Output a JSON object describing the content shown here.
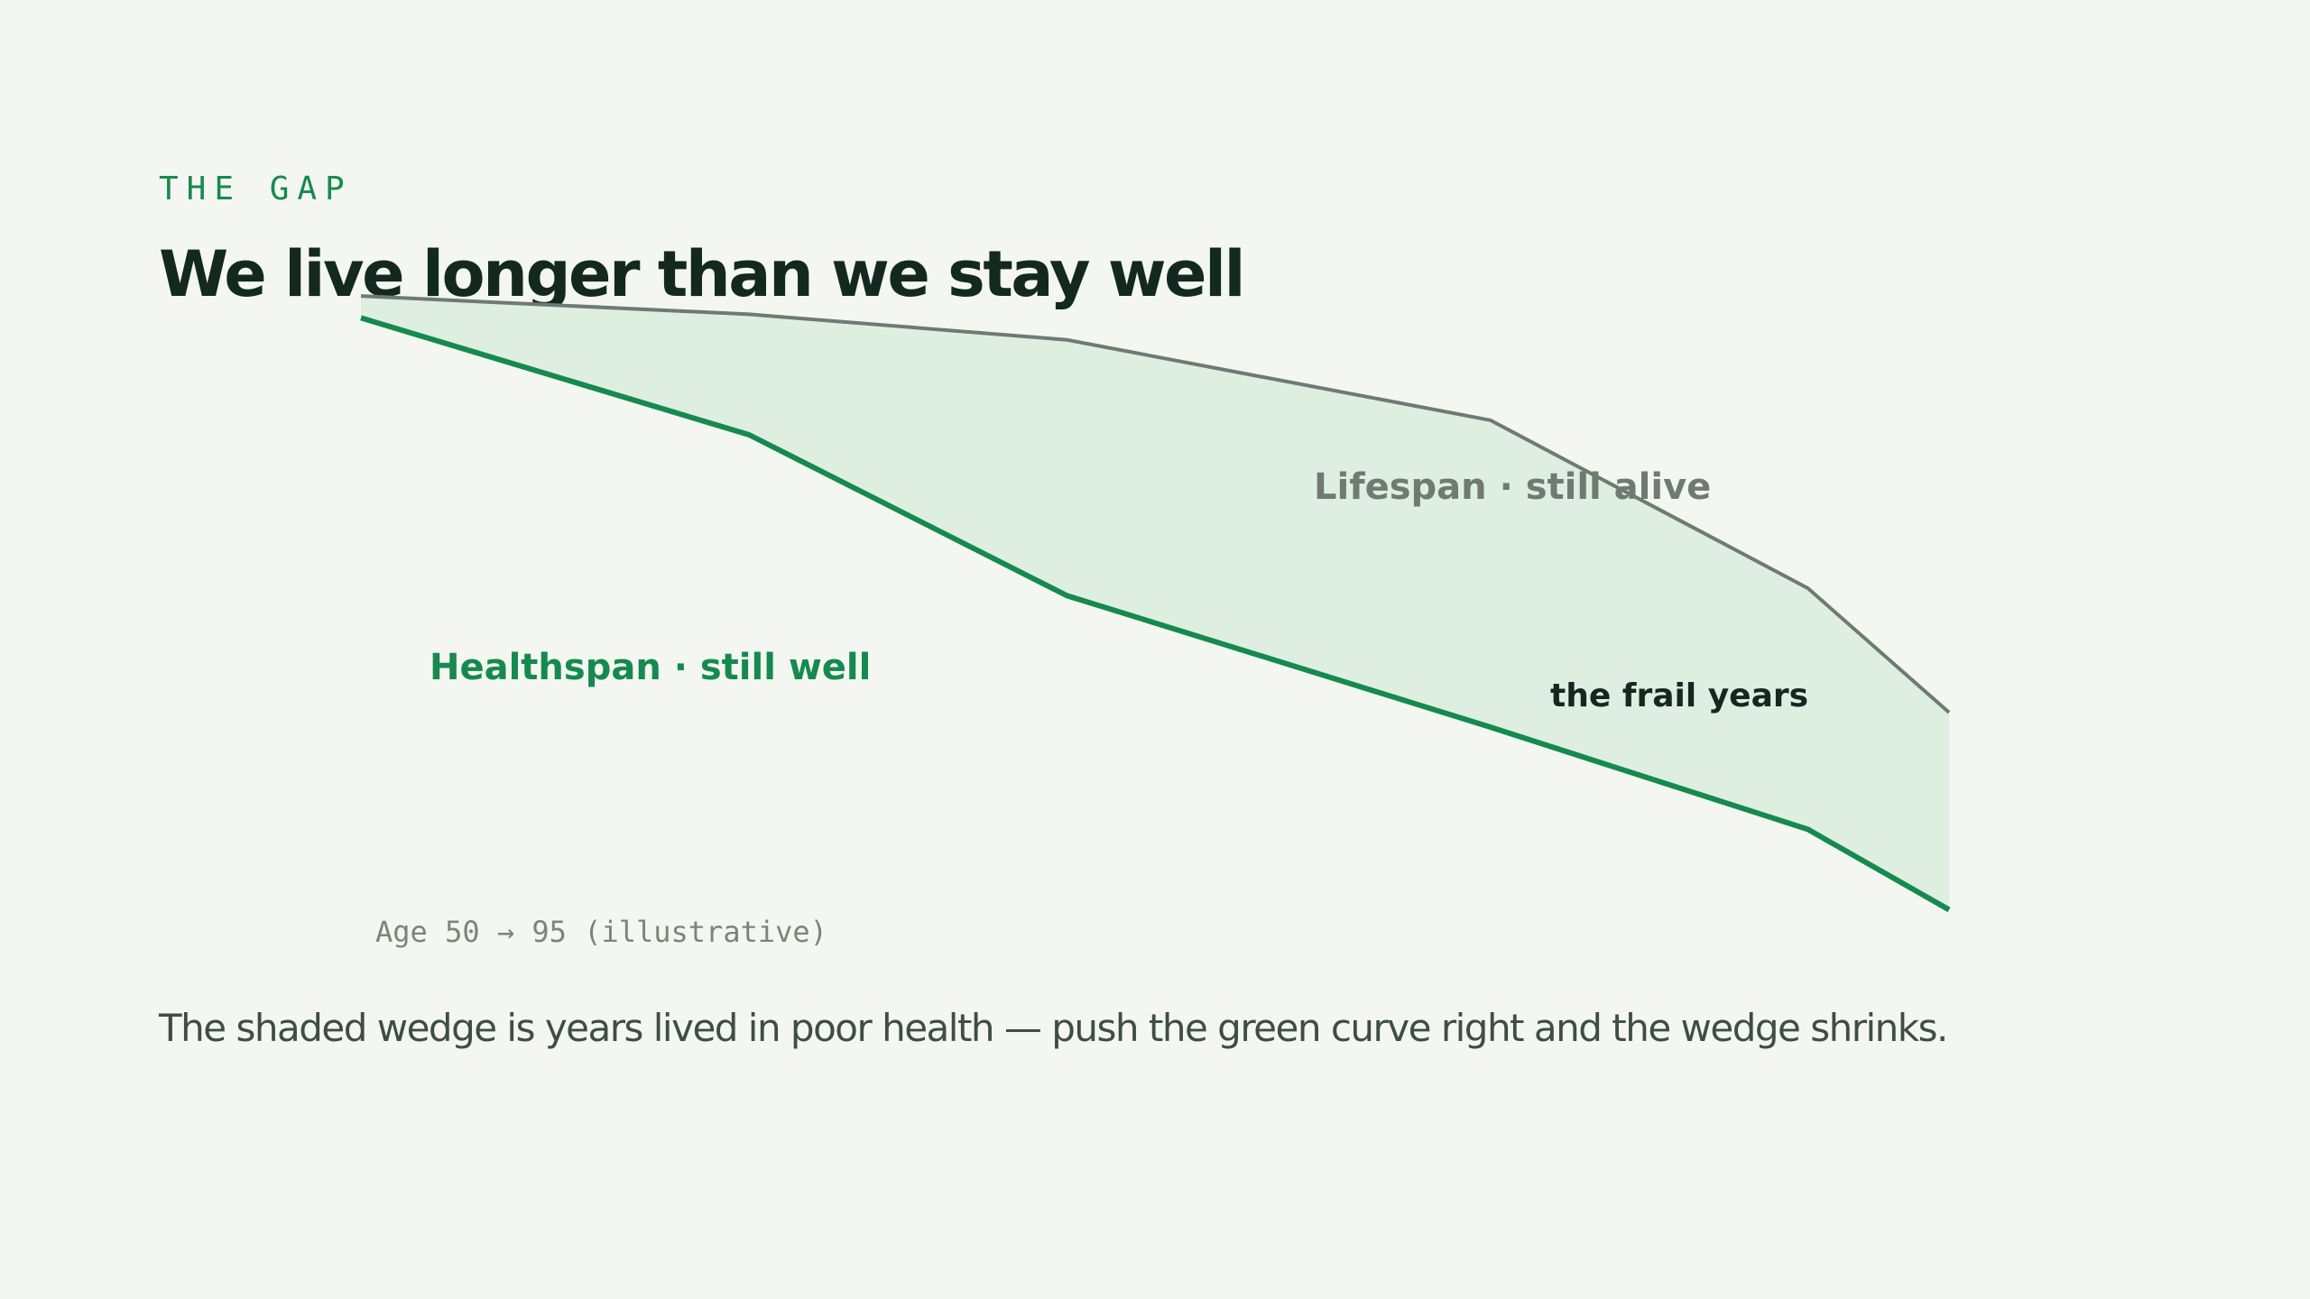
{
  "header": {
    "eyebrow": "THE GAP",
    "title": "We live longer than we stay well"
  },
  "chart_data": {
    "type": "area",
    "x": [
      50,
      61,
      70,
      82,
      91,
      95
    ],
    "series": [
      {
        "name": "Lifespan · still alive",
        "values": [
          99,
          96.5,
          93,
          82,
          59,
          42
        ]
      },
      {
        "name": "Healthspan · still well",
        "values": [
          96,
          80,
          58,
          40,
          26,
          15
        ]
      }
    ],
    "shaded_region_label": "the frail years",
    "xlabel": "Age 50 → 95 (illustrative)",
    "ylabel": "",
    "ylim": [
      0,
      100
    ],
    "grid": false,
    "colors": {
      "lifespan": "#6e7a72",
      "healthspan": "#168a4e",
      "gap_fill": "#deefe2"
    }
  },
  "caption": "The shaded wedge is years lived in poor health — push the green curve right and the wedge shrinks."
}
